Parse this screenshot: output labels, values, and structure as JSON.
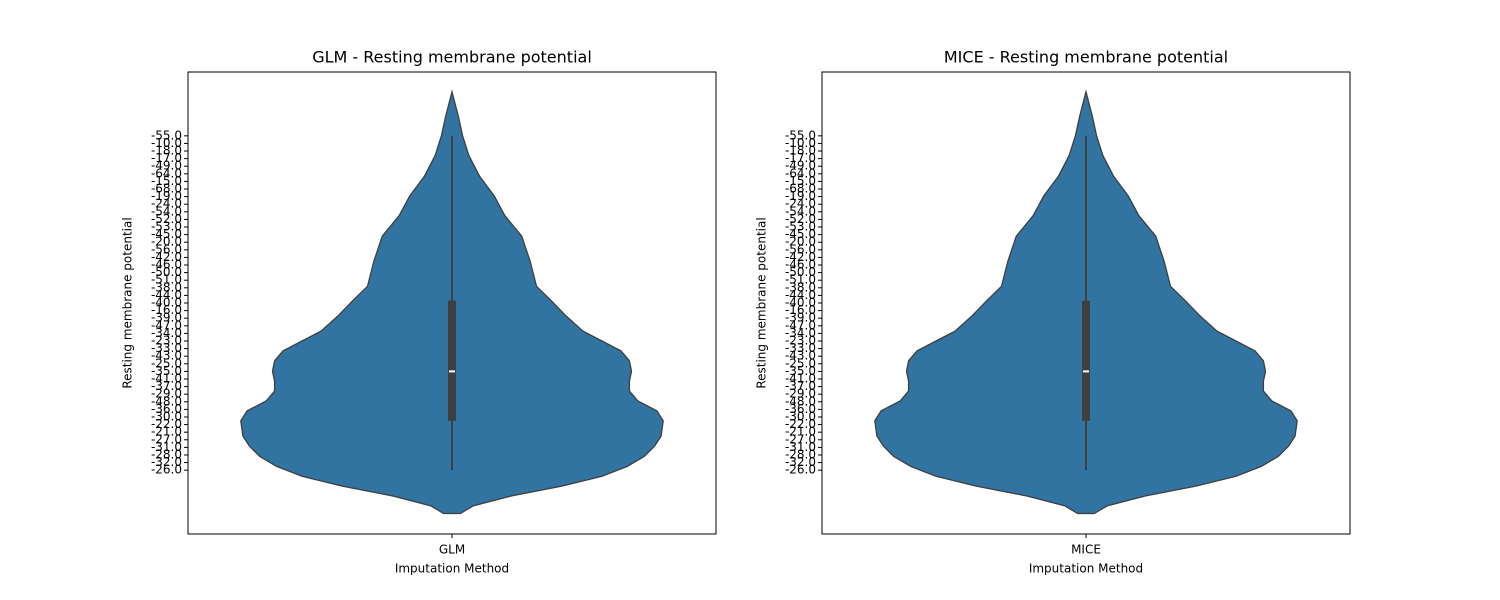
{
  "chart_data": [
    {
      "type": "violin",
      "title": "GLM - Resting membrane potential",
      "xlabel": "Imputation Method",
      "ylabel": "Resting membrane potential",
      "categories": [
        "GLM"
      ],
      "color": "#3274a1",
      "ylim": [
        52.4,
        -8.4
      ],
      "yticks": [
        {
          "value": 0,
          "label": "-26.0"
        },
        {
          "value": 1,
          "label": "-32.0"
        },
        {
          "value": 2,
          "label": "-28.0"
        },
        {
          "value": 3,
          "label": "-31.0"
        },
        {
          "value": 4,
          "label": "-27.0"
        },
        {
          "value": 5,
          "label": "-21.0"
        },
        {
          "value": 6,
          "label": "-22.0"
        },
        {
          "value": 7,
          "label": "-30.0"
        },
        {
          "value": 8,
          "label": "-36.0"
        },
        {
          "value": 9,
          "label": "-48.0"
        },
        {
          "value": 10,
          "label": "-29.0"
        },
        {
          "value": 11,
          "label": "-37.0"
        },
        {
          "value": 12,
          "label": "-41.0"
        },
        {
          "value": 13,
          "label": "-35.0"
        },
        {
          "value": 14,
          "label": "-25.0"
        },
        {
          "value": 15,
          "label": "-43.0"
        },
        {
          "value": 16,
          "label": "-33.0"
        },
        {
          "value": 17,
          "label": "-23.0"
        },
        {
          "value": 18,
          "label": "-34.0"
        },
        {
          "value": 19,
          "label": "-47.0"
        },
        {
          "value": 20,
          "label": "-39.0"
        },
        {
          "value": 21,
          "label": "-16.0"
        },
        {
          "value": 22,
          "label": "-40.0"
        },
        {
          "value": 23,
          "label": "-44.0"
        },
        {
          "value": 24,
          "label": "-38.0"
        },
        {
          "value": 25,
          "label": "-51.0"
        },
        {
          "value": 26,
          "label": "-50.0"
        },
        {
          "value": 27,
          "label": "-46.0"
        },
        {
          "value": 28,
          "label": "-42.0"
        },
        {
          "value": 29,
          "label": "-56.0"
        },
        {
          "value": 30,
          "label": "-20.0"
        },
        {
          "value": 31,
          "label": "-45.0"
        },
        {
          "value": 32,
          "label": "-53.0"
        },
        {
          "value": 33,
          "label": "-52.0"
        },
        {
          "value": 34,
          "label": "-54.0"
        },
        {
          "value": 35,
          "label": "-24.0"
        },
        {
          "value": 36,
          "label": "-19.0"
        },
        {
          "value": 37,
          "label": "-68.0"
        },
        {
          "value": 38,
          "label": "-15.0"
        },
        {
          "value": 39,
          "label": "-64.0"
        },
        {
          "value": 40,
          "label": "-49.0"
        },
        {
          "value": 41,
          "label": "-17.0"
        },
        {
          "value": 42,
          "label": "-18.0"
        },
        {
          "value": 43,
          "label": "-10.0"
        },
        {
          "value": 44,
          "label": "-55.0"
        }
      ],
      "violin": {
        "positions": [
          -5.7,
          -4.7,
          -3.4,
          -2.1,
          -0.8,
          0.5,
          1.8,
          3.2,
          4.5,
          6.5,
          7.8,
          9.1,
          10.4,
          11.7,
          13.0,
          14.4,
          15.7,
          17.0,
          18.3,
          20.3,
          22.3,
          24.2,
          27.5,
          30.8,
          33.5,
          36.1,
          38.7,
          41.4,
          44.0,
          46.6,
          49.8
        ],
        "density": [
          0.04,
          0.1,
          0.28,
          0.52,
          0.71,
          0.83,
          0.91,
          0.96,
          0.99,
          1.0,
          0.97,
          0.88,
          0.84,
          0.84,
          0.85,
          0.84,
          0.8,
          0.71,
          0.62,
          0.54,
          0.47,
          0.4,
          0.37,
          0.33,
          0.25,
          0.2,
          0.13,
          0.08,
          0.05,
          0.03,
          0.0
        ]
      },
      "box": {
        "whisker_low": 0,
        "q1": 6.5,
        "median": 13,
        "q3": 22.3,
        "whisker_high": 44
      }
    },
    {
      "type": "violin",
      "title": "MICE - Resting membrane potential",
      "xlabel": "Imputation Method",
      "ylabel": "Resting membrane potential",
      "categories": [
        "MICE"
      ],
      "color": "#3274a1",
      "ylim": [
        52.4,
        -8.4
      ],
      "yticks": [
        {
          "value": 0,
          "label": "-26.0"
        },
        {
          "value": 1,
          "label": "-32.0"
        },
        {
          "value": 2,
          "label": "-28.0"
        },
        {
          "value": 3,
          "label": "-31.0"
        },
        {
          "value": 4,
          "label": "-27.0"
        },
        {
          "value": 5,
          "label": "-21.0"
        },
        {
          "value": 6,
          "label": "-22.0"
        },
        {
          "value": 7,
          "label": "-30.0"
        },
        {
          "value": 8,
          "label": "-36.0"
        },
        {
          "value": 9,
          "label": "-48.0"
        },
        {
          "value": 10,
          "label": "-29.0"
        },
        {
          "value": 11,
          "label": "-37.0"
        },
        {
          "value": 12,
          "label": "-41.0"
        },
        {
          "value": 13,
          "label": "-35.0"
        },
        {
          "value": 14,
          "label": "-25.0"
        },
        {
          "value": 15,
          "label": "-43.0"
        },
        {
          "value": 16,
          "label": "-33.0"
        },
        {
          "value": 17,
          "label": "-23.0"
        },
        {
          "value": 18,
          "label": "-34.0"
        },
        {
          "value": 19,
          "label": "-47.0"
        },
        {
          "value": 20,
          "label": "-39.0"
        },
        {
          "value": 21,
          "label": "-16.0"
        },
        {
          "value": 22,
          "label": "-40.0"
        },
        {
          "value": 23,
          "label": "-44.0"
        },
        {
          "value": 24,
          "label": "-38.0"
        },
        {
          "value": 25,
          "label": "-51.0"
        },
        {
          "value": 26,
          "label": "-50.0"
        },
        {
          "value": 27,
          "label": "-46.0"
        },
        {
          "value": 28,
          "label": "-42.0"
        },
        {
          "value": 29,
          "label": "-56.0"
        },
        {
          "value": 30,
          "label": "-20.0"
        },
        {
          "value": 31,
          "label": "-45.0"
        },
        {
          "value": 32,
          "label": "-53.0"
        },
        {
          "value": 33,
          "label": "-52.0"
        },
        {
          "value": 34,
          "label": "-54.0"
        },
        {
          "value": 35,
          "label": "-24.0"
        },
        {
          "value": 36,
          "label": "-19.0"
        },
        {
          "value": 37,
          "label": "-68.0"
        },
        {
          "value": 38,
          "label": "-15.0"
        },
        {
          "value": 39,
          "label": "-64.0"
        },
        {
          "value": 40,
          "label": "-49.0"
        },
        {
          "value": 41,
          "label": "-17.0"
        },
        {
          "value": 42,
          "label": "-18.0"
        },
        {
          "value": 43,
          "label": "-10.0"
        },
        {
          "value": 44,
          "label": "-55.0"
        }
      ],
      "violin": {
        "positions": [
          -5.7,
          -4.7,
          -3.4,
          -2.1,
          -0.8,
          0.5,
          1.8,
          3.2,
          4.5,
          6.5,
          7.8,
          9.1,
          10.4,
          11.7,
          13.0,
          14.4,
          15.7,
          17.0,
          18.3,
          20.3,
          22.3,
          24.2,
          27.5,
          30.8,
          33.5,
          36.1,
          38.7,
          41.4,
          44.0,
          46.6,
          49.8
        ],
        "density": [
          0.04,
          0.1,
          0.28,
          0.52,
          0.71,
          0.83,
          0.91,
          0.96,
          0.99,
          1.0,
          0.97,
          0.88,
          0.84,
          0.84,
          0.85,
          0.84,
          0.8,
          0.71,
          0.62,
          0.54,
          0.47,
          0.4,
          0.37,
          0.33,
          0.25,
          0.2,
          0.13,
          0.08,
          0.05,
          0.03,
          0.0
        ]
      },
      "box": {
        "whisker_low": 0,
        "q1": 6.5,
        "median": 13,
        "q3": 22.3,
        "whisker_high": 44
      }
    }
  ]
}
